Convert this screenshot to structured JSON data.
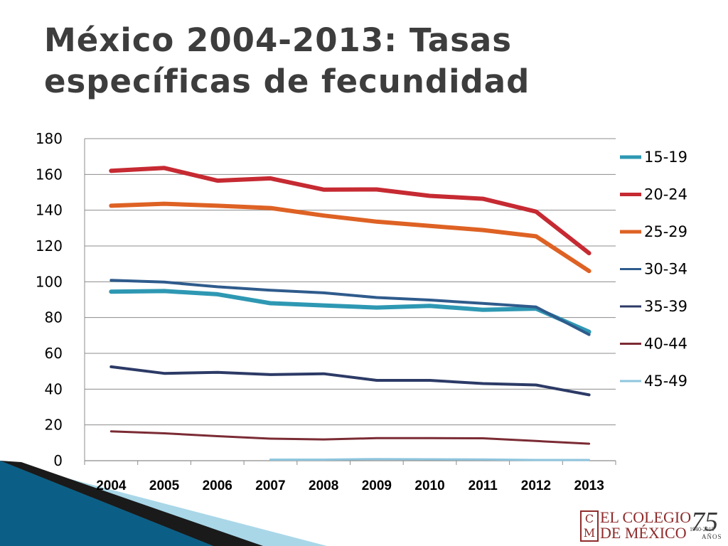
{
  "slide": {
    "title": "México 2004-2013: Tasas específicas de fecundidad"
  },
  "logo": {
    "box_letters": [
      "C",
      "M"
    ],
    "line1": "EL COLEGIO",
    "line2": "DE MÉXICO",
    "anniversary": "75",
    "years": "1940-2015",
    "anos": "AÑOS"
  },
  "colors": {
    "decor_dark": "#0b5f86",
    "decor_mid": "#3d9dc2",
    "decor_light": "#a9d7e8",
    "logo_red": "#8f2b2b"
  },
  "chart_data": {
    "type": "line",
    "title": "",
    "xlabel": "",
    "ylabel": "",
    "ylim": [
      0,
      180
    ],
    "yticks": [
      "0",
      "20",
      "40",
      "60",
      "80",
      "100",
      "120",
      "140",
      "160",
      "180"
    ],
    "categories": [
      "2004",
      "2005",
      "2006",
      "2007",
      "2008",
      "2009",
      "2010",
      "2011",
      "2012",
      "2013"
    ],
    "grid": true,
    "legend_position": "right",
    "series": [
      {
        "name": "15-19",
        "color": "#2e98b3",
        "width": 6,
        "values": [
          94.5,
          94.8,
          93.0,
          88.0,
          86.8,
          85.6,
          86.5,
          84.3,
          85.0,
          72.0
        ]
      },
      {
        "name": "20-24",
        "color": "#c62a32",
        "width": 6,
        "values": [
          162.0,
          163.6,
          156.5,
          157.8,
          151.5,
          151.6,
          148.0,
          146.4,
          139.2,
          116.0
        ]
      },
      {
        "name": "25-29",
        "color": "#de6224",
        "width": 6,
        "values": [
          142.5,
          143.6,
          142.5,
          141.2,
          137.0,
          133.6,
          131.2,
          128.9,
          125.4,
          106.0
        ]
      },
      {
        "name": "30-34",
        "color": "#2f5b8c",
        "width": 4,
        "values": [
          100.8,
          99.8,
          97.2,
          95.3,
          93.8,
          91.2,
          89.8,
          87.9,
          85.9,
          70.5
        ]
      },
      {
        "name": "35-39",
        "color": "#2c3a66",
        "width": 4,
        "values": [
          52.5,
          48.8,
          49.4,
          48.1,
          48.6,
          44.9,
          44.9,
          43.1,
          42.3,
          36.8
        ]
      },
      {
        "name": "40-44",
        "color": "#7b2b34",
        "width": 3,
        "values": [
          16.4,
          15.3,
          13.7,
          12.3,
          11.9,
          12.6,
          12.6,
          12.5,
          11.0,
          9.5
        ]
      },
      {
        "name": "45-49",
        "color": "#8ec5de",
        "width": 3,
        "values": [
          null,
          null,
          null,
          0.6,
          0.6,
          0.9,
          0.8,
          0.7,
          0.4,
          0.4
        ]
      }
    ]
  }
}
